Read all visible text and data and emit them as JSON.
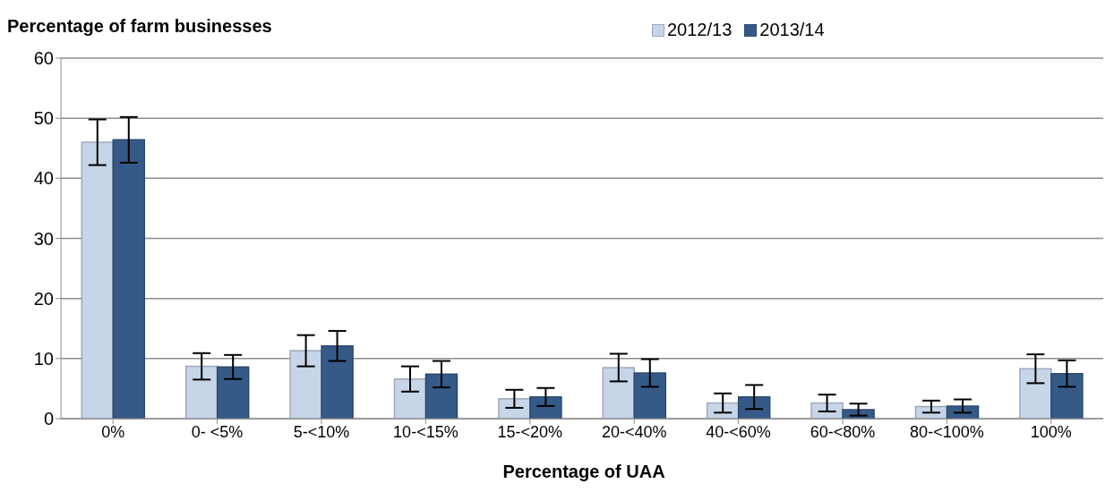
{
  "chart_data": {
    "type": "bar",
    "xlabel": "Percentage of UAA",
    "ylabel": "Percentage of farm businesses",
    "categories": [
      "0%",
      "0- <5%",
      "5-<10%",
      "10-<15%",
      "15-<20%",
      "20-<40%",
      "40-<60%",
      "60-<80%",
      "80-<100%",
      "100%"
    ],
    "series": [
      {
        "name": "2012/13",
        "color": "#c6d5e8",
        "values": [
          46.0,
          8.7,
          11.3,
          6.6,
          3.3,
          8.5,
          2.6,
          2.6,
          2.0,
          8.3
        ],
        "errors": [
          3.8,
          2.2,
          2.6,
          2.1,
          1.5,
          2.3,
          1.6,
          1.4,
          1.0,
          2.4
        ]
      },
      {
        "name": "2013/14",
        "color": "#365a88",
        "values": [
          46.4,
          8.6,
          12.1,
          7.4,
          3.6,
          7.6,
          3.6,
          1.5,
          2.1,
          7.5
        ],
        "errors": [
          3.8,
          2.0,
          2.5,
          2.2,
          1.5,
          2.3,
          2.0,
          1.0,
          1.1,
          2.2
        ]
      }
    ],
    "ylim": [
      0,
      60
    ],
    "yticks": [
      0,
      10,
      20,
      30,
      40,
      50,
      60
    ],
    "grid": "y",
    "legend": "top right"
  }
}
